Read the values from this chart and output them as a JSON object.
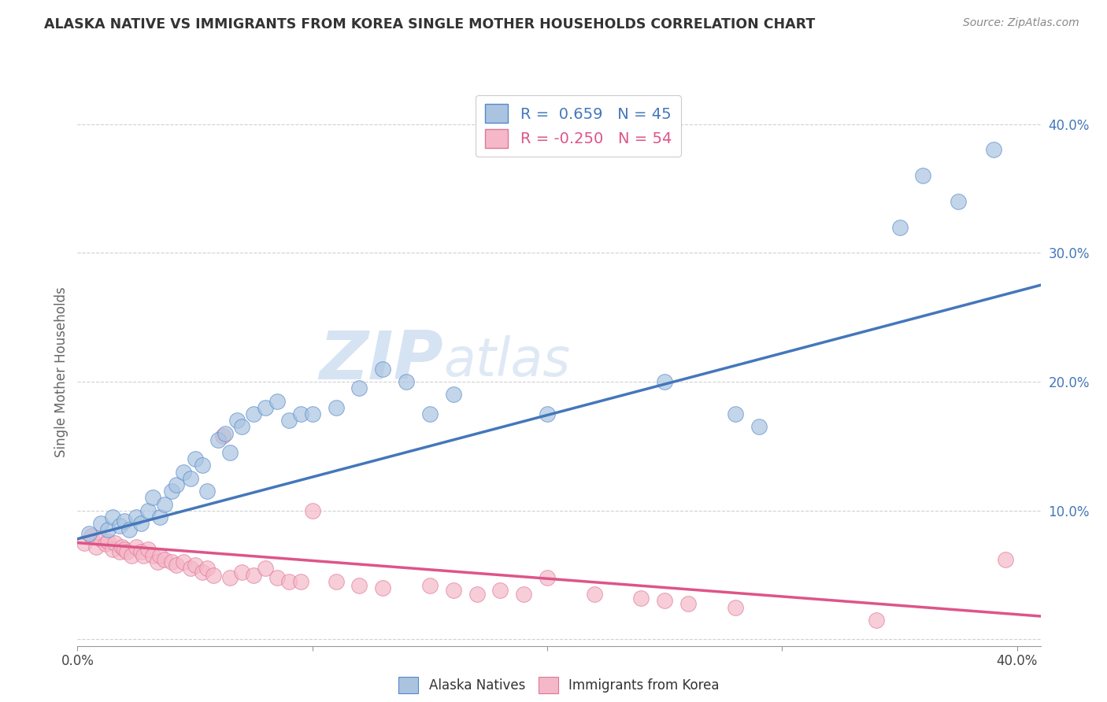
{
  "title": "ALASKA NATIVE VS IMMIGRANTS FROM KOREA SINGLE MOTHER HOUSEHOLDS CORRELATION CHART",
  "source": "Source: ZipAtlas.com",
  "ylabel": "Single Mother Households",
  "xlim": [
    0.0,
    0.41
  ],
  "ylim": [
    -0.005,
    0.42
  ],
  "legend_blue_r": "R =  0.659",
  "legend_blue_n": "N = 45",
  "legend_pink_r": "R = -0.250",
  "legend_pink_n": "N = 54",
  "blue_color": "#aac4e0",
  "blue_edge_color": "#5588cc",
  "blue_line_color": "#4477bb",
  "pink_color": "#f5b8c8",
  "pink_edge_color": "#dd7799",
  "pink_line_color": "#dd5588",
  "watermark_zip": "ZIP",
  "watermark_atlas": "atlas",
  "grid_color": "#cccccc",
  "background_color": "#ffffff",
  "blue_scatter_x": [
    0.005,
    0.01,
    0.013,
    0.015,
    0.018,
    0.02,
    0.022,
    0.025,
    0.027,
    0.03,
    0.032,
    0.035,
    0.037,
    0.04,
    0.042,
    0.045,
    0.048,
    0.05,
    0.053,
    0.055,
    0.06,
    0.063,
    0.065,
    0.068,
    0.07,
    0.075,
    0.08,
    0.085,
    0.09,
    0.095,
    0.1,
    0.11,
    0.12,
    0.13,
    0.14,
    0.15,
    0.16,
    0.2,
    0.25,
    0.28,
    0.29,
    0.35,
    0.36,
    0.375,
    0.39
  ],
  "blue_scatter_y": [
    0.082,
    0.09,
    0.085,
    0.095,
    0.088,
    0.092,
    0.085,
    0.095,
    0.09,
    0.1,
    0.11,
    0.095,
    0.105,
    0.115,
    0.12,
    0.13,
    0.125,
    0.14,
    0.135,
    0.115,
    0.155,
    0.16,
    0.145,
    0.17,
    0.165,
    0.175,
    0.18,
    0.185,
    0.17,
    0.175,
    0.175,
    0.18,
    0.195,
    0.21,
    0.2,
    0.175,
    0.19,
    0.175,
    0.2,
    0.175,
    0.165,
    0.32,
    0.36,
    0.34,
    0.38
  ],
  "pink_scatter_x": [
    0.003,
    0.006,
    0.008,
    0.01,
    0.012,
    0.013,
    0.015,
    0.016,
    0.018,
    0.019,
    0.02,
    0.021,
    0.023,
    0.025,
    0.027,
    0.028,
    0.03,
    0.032,
    0.034,
    0.035,
    0.037,
    0.04,
    0.042,
    0.045,
    0.048,
    0.05,
    0.053,
    0.055,
    0.058,
    0.062,
    0.065,
    0.07,
    0.075,
    0.08,
    0.085,
    0.09,
    0.095,
    0.1,
    0.11,
    0.12,
    0.13,
    0.15,
    0.16,
    0.17,
    0.18,
    0.19,
    0.2,
    0.22,
    0.24,
    0.25,
    0.26,
    0.28,
    0.34,
    0.395
  ],
  "pink_scatter_y": [
    0.075,
    0.08,
    0.072,
    0.078,
    0.074,
    0.076,
    0.07,
    0.075,
    0.068,
    0.072,
    0.07,
    0.068,
    0.065,
    0.072,
    0.068,
    0.065,
    0.07,
    0.065,
    0.06,
    0.065,
    0.062,
    0.06,
    0.058,
    0.06,
    0.055,
    0.058,
    0.052,
    0.055,
    0.05,
    0.158,
    0.048,
    0.052,
    0.05,
    0.055,
    0.048,
    0.045,
    0.045,
    0.1,
    0.045,
    0.042,
    0.04,
    0.042,
    0.038,
    0.035,
    0.038,
    0.035,
    0.048,
    0.035,
    0.032,
    0.03,
    0.028,
    0.025,
    0.015,
    0.062
  ],
  "blue_line_x": [
    0.0,
    0.41
  ],
  "blue_line_y": [
    0.078,
    0.275
  ],
  "pink_line_x": [
    0.0,
    0.41
  ],
  "pink_line_y": [
    0.075,
    0.018
  ]
}
